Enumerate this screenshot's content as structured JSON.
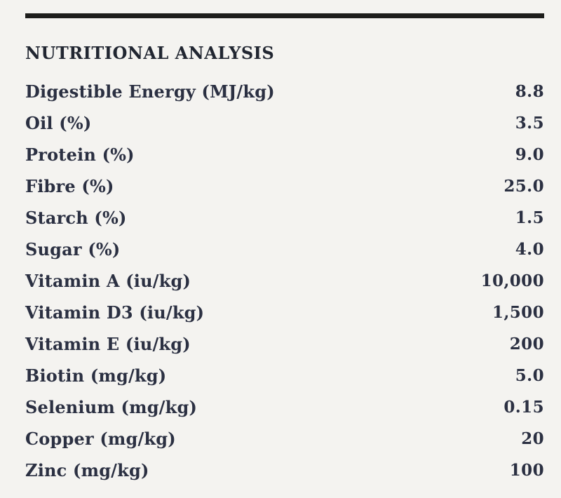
{
  "page": {
    "background_color": "#f4f3f0",
    "rule_color": "#1d1d1b",
    "title_color": "#212631",
    "text_color": "#2b3042"
  },
  "section": {
    "title": "NUTRITIONAL ANALYSIS",
    "rows": [
      {
        "label": "Digestible Energy (MJ/kg)",
        "value": "8.8"
      },
      {
        "label": "Oil (%)",
        "value": "3.5"
      },
      {
        "label": "Protein (%)",
        "value": "9.0"
      },
      {
        "label": "Fibre (%)",
        "value": "25.0"
      },
      {
        "label": "Starch (%)",
        "value": "1.5"
      },
      {
        "label": "Sugar (%)",
        "value": "4.0"
      },
      {
        "label": "Vitamin A (iu/kg)",
        "value": "10,000"
      },
      {
        "label": "Vitamin D3 (iu/kg)",
        "value": "1,500"
      },
      {
        "label": "Vitamin E (iu/kg)",
        "value": "200"
      },
      {
        "label": "Biotin (mg/kg)",
        "value": "5.0"
      },
      {
        "label": "Selenium (mg/kg)",
        "value": "0.15"
      },
      {
        "label": "Copper (mg/kg)",
        "value": "20"
      },
      {
        "label": "Zinc (mg/kg)",
        "value": "100"
      }
    ]
  }
}
